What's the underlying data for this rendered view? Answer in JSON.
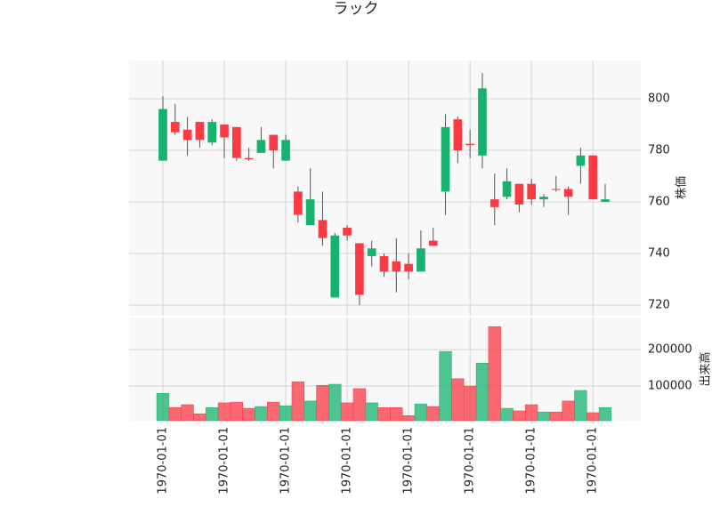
{
  "chart_data": {
    "type": "candlestick",
    "title": "ラック",
    "ylabel": "株価",
    "volume_label": "出来高",
    "categories": [
      "1970-01-01",
      null,
      null,
      null,
      null,
      "1970-01-01",
      null,
      null,
      null,
      null,
      "1970-01-01",
      null,
      null,
      null,
      null,
      "1970-01-01",
      null,
      null,
      null,
      null,
      "1970-01-01",
      null,
      null,
      null,
      null,
      "1970-01-01",
      null,
      null,
      null,
      null,
      "1970-01-01",
      null,
      null,
      null,
      null,
      "1970-01-01",
      null
    ],
    "open": [
      776,
      791,
      788,
      791,
      783,
      790,
      789,
      777,
      779,
      786,
      776,
      764,
      751,
      753,
      723,
      750,
      744,
      739,
      739,
      737,
      736,
      733,
      745,
      764,
      792,
      782.5,
      778,
      761,
      762,
      767,
      767,
      761,
      765,
      765,
      774,
      778,
      760
    ],
    "high": [
      801,
      798,
      793,
      791,
      792,
      790,
      789,
      781,
      789,
      786,
      786,
      766,
      773,
      764,
      748,
      751,
      744,
      745,
      740,
      746,
      740,
      749,
      750,
      794,
      793,
      788,
      810,
      771,
      773,
      767,
      769,
      763,
      770,
      766,
      781,
      778,
      767
    ],
    "low": [
      776,
      786,
      778,
      781,
      782,
      777,
      776,
      776,
      779,
      773,
      776,
      752,
      751,
      743,
      723,
      745,
      720,
      735,
      731,
      725,
      730,
      733,
      743,
      755,
      775,
      777,
      773,
      751,
      761,
      756,
      759,
      758,
      764,
      755,
      767,
      761,
      760
    ],
    "close": [
      796,
      787,
      784,
      784,
      791,
      785,
      777,
      776.5,
      784,
      780,
      784,
      755,
      761,
      746,
      747,
      747,
      724,
      742,
      733,
      733,
      733,
      742,
      743,
      789,
      780,
      782,
      804,
      758,
      768,
      759,
      761,
      762,
      764.8,
      762,
      778,
      761,
      761
    ],
    "volume": [
      80000,
      41000,
      49000,
      24000,
      41000,
      54000,
      56000,
      39000,
      44000,
      56000,
      46000,
      112000,
      59000,
      102000,
      105000,
      54000,
      93000,
      54000,
      41000,
      41000,
      19000,
      51000,
      44000,
      195000,
      120000,
      100000,
      163000,
      263000,
      39000,
      32000,
      49000,
      29000,
      29000,
      59000,
      88000,
      27000,
      41000
    ],
    "up_color": "#16b36f",
    "down_color": "#fb3a44",
    "ylim": [
      715.9,
      814.8
    ],
    "yticks": [
      720,
      740,
      760,
      780,
      800
    ],
    "volume_ylim": [
      5000,
      288000
    ],
    "volume_ticks": [
      100000,
      200000
    ],
    "grid": true
  }
}
